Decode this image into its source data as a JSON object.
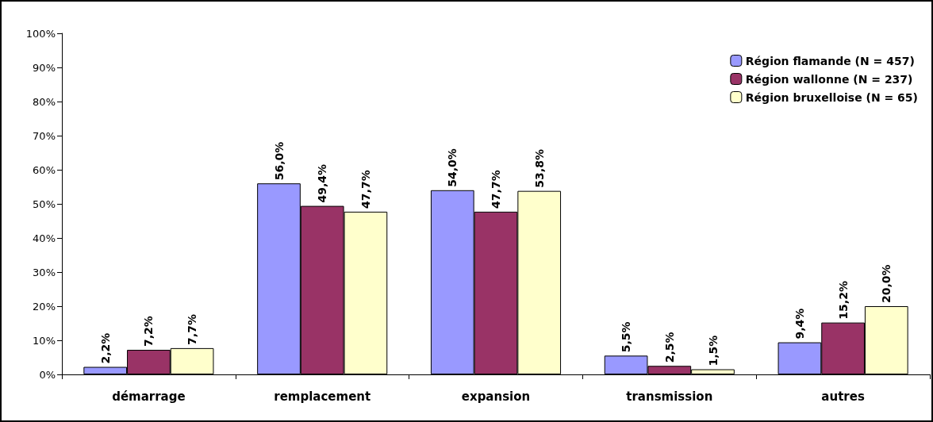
{
  "chart_data": {
    "type": "bar",
    "categories": [
      "démarrage",
      "remplacement",
      "expansion",
      "transmission",
      "autres"
    ],
    "series": [
      {
        "name": "Région flamande (N = 457)",
        "color": "#9999ff",
        "values": [
          2.2,
          56.0,
          54.0,
          5.5,
          9.4
        ],
        "value_labels": [
          "2,2%",
          "56,0%",
          "54,0%",
          "5,5%",
          "9,4%"
        ]
      },
      {
        "name": "Région wallonne (N = 237)",
        "color": "#993366",
        "values": [
          7.2,
          49.4,
          47.7,
          2.5,
          15.2
        ],
        "value_labels": [
          "7,2%",
          "49,4%",
          "47,7%",
          "2,5%",
          "15,2%"
        ]
      },
      {
        "name": "Région bruxelloise (N = 65)",
        "color": "#ffffcc",
        "values": [
          7.7,
          47.7,
          53.8,
          1.5,
          20.0
        ],
        "value_labels": [
          "7,7%",
          "47,7%",
          "53,8%",
          "1,5%",
          "20,0%"
        ]
      }
    ],
    "ylim": [
      0,
      100
    ],
    "yticks": [
      {
        "value": 0,
        "label": "0%"
      },
      {
        "value": 10,
        "label": "10%"
      },
      {
        "value": 20,
        "label": "20%"
      },
      {
        "value": 30,
        "label": "30%"
      },
      {
        "value": 40,
        "label": "40%"
      },
      {
        "value": 50,
        "label": "50%"
      },
      {
        "value": 60,
        "label": "60%"
      },
      {
        "value": 70,
        "label": "70%"
      },
      {
        "value": 80,
        "label": "80%"
      },
      {
        "value": 90,
        "label": "90%"
      },
      {
        "value": 100,
        "label": "100%"
      }
    ],
    "grid": false,
    "legend": "top right"
  }
}
